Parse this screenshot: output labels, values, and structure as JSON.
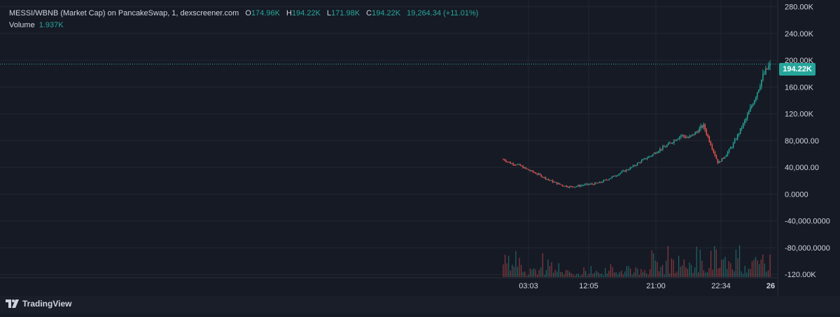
{
  "legend": {
    "symbol": "MESSI/WBNB (Market Cap) on PancakeSwap, 1, dexscreener.com",
    "open_label": "O",
    "open": "174.96K",
    "high_label": "H",
    "high": "194.22K",
    "low_label": "L",
    "low": "171.98K",
    "close_label": "C",
    "close": "194.22K",
    "change": "19,264.34 (+11.01%)",
    "volume_label": "Volume",
    "volume": "1.937K"
  },
  "last_price_tag": "194.22K",
  "branding": "TradingView",
  "colors": {
    "up": "#26a69a",
    "down": "#ef5350",
    "background": "#161a25",
    "grid": "#232733",
    "text": "#d1d4dc"
  },
  "chart_data": {
    "type": "candlestick",
    "y_axis": {
      "min": -125000,
      "max": 290000,
      "ticks": [
        280000,
        240000,
        200000,
        160000,
        120000,
        80000,
        40000,
        0,
        -40000,
        -80000,
        -120000
      ],
      "tick_labels": [
        "280.00K",
        "240.00K",
        "200.00K",
        "160.00K",
        "120.00K",
        "80,000.00",
        "40,000.00",
        "0.0000",
        "-40,000.0000",
        "-80,000.0000",
        "-120.00K"
      ]
    },
    "x_axis": {
      "tick_labels": [
        "03:03",
        "12:05",
        "21:00",
        "22:34",
        "26"
      ]
    },
    "grid": true,
    "price_series": [
      52000,
      46000,
      44000,
      38000,
      33000,
      28000,
      22000,
      17000,
      13000,
      11000,
      12000,
      14000,
      15000,
      17000,
      22000,
      27000,
      33000,
      38000,
      45000,
      52000,
      58000,
      66000,
      72000,
      80000,
      88000,
      84000,
      92000,
      103000,
      75000,
      46000,
      58000,
      74000,
      96000,
      118000,
      145000,
      175000,
      194220
    ],
    "last_price": 194220,
    "volume_series": [
      0.9,
      0.4,
      0.7,
      0.3,
      0.5,
      0.35,
      0.6,
      0.25,
      0.3,
      0.2,
      0.15,
      0.2,
      0.25,
      0.3,
      0.2,
      0.35,
      0.5,
      0.4,
      0.3,
      0.45,
      0.9,
      0.4,
      0.6,
      0.35,
      0.7,
      0.5,
      0.95,
      0.4,
      1.0,
      0.8,
      0.55,
      0.7,
      0.6,
      0.85,
      0.75,
      0.9,
      1.0
    ]
  }
}
